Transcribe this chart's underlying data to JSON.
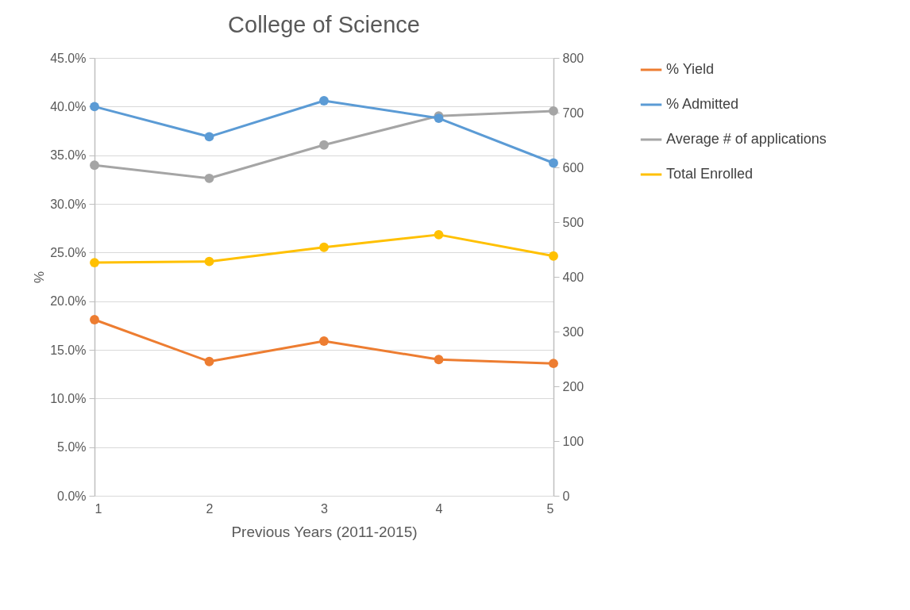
{
  "chart_data": {
    "type": "line",
    "title": "College of Science",
    "xlabel": "Previous Years (2011-2015)",
    "ylabel": "%",
    "x": [
      1,
      2,
      3,
      4,
      5
    ],
    "xlim": [
      1,
      5
    ],
    "xticks": [
      1,
      2,
      3,
      4,
      5
    ],
    "ylim": [
      0,
      45
    ],
    "yticks": [
      {
        "value": 0,
        "label": "0.0%"
      },
      {
        "value": 5,
        "label": "5.0%"
      },
      {
        "value": 10,
        "label": "10.0%"
      },
      {
        "value": 15,
        "label": "15.0%"
      },
      {
        "value": 20,
        "label": "20.0%"
      },
      {
        "value": 25,
        "label": "25.0%"
      },
      {
        "value": 30,
        "label": "30.0%"
      },
      {
        "value": 35,
        "label": "35.0%"
      },
      {
        "value": 40,
        "label": "40.0%"
      },
      {
        "value": 45,
        "label": "45.0%"
      }
    ],
    "y2lim": [
      0,
      800
    ],
    "y2ticks": [
      0,
      100,
      200,
      300,
      400,
      500,
      600,
      700,
      800
    ],
    "grid": "y",
    "legend": "right",
    "marker": "circle",
    "line_style": "solid",
    "series": [
      {
        "name": "% Yield",
        "color": "#ed7d31",
        "values": [
          18.1,
          13.8,
          15.9,
          14.0,
          13.6
        ]
      },
      {
        "name": "% Admitted",
        "color": "#5b9bd5",
        "values": [
          40.0,
          36.9,
          40.6,
          38.8,
          34.2
        ]
      },
      {
        "name": "Average # of applications",
        "color": "#a5a5a5",
        "axis": "y2",
        "values": [
          604,
          580,
          641,
          694,
          703
        ]
      },
      {
        "name": "Total Enrolled",
        "color": "#ffc000",
        "axis": "y2",
        "values": [
          426,
          428,
          454,
          477,
          438
        ]
      }
    ]
  }
}
